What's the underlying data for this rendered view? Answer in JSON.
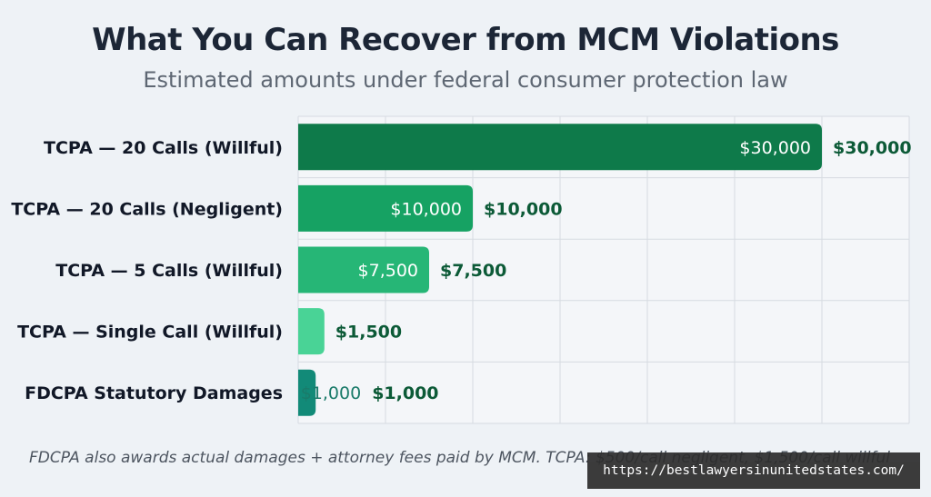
{
  "title": "What You Can Recover from MCM Violations",
  "subtitle": "Estimated amounts under federal consumer protection law",
  "footnote": "FDCPA also awards actual damages + attorney fees paid by MCM. TCPA: $500/call negligent, $1,500/call willful",
  "watermark": "https://bestlawyersinunitedstates.com/",
  "chart_data": {
    "type": "bar",
    "orientation": "horizontal",
    "categories": [
      "TCPA — 20 Calls (Willful)",
      "TCPA — 20 Calls (Negligent)",
      "TCPA — 5 Calls (Willful)",
      "TCPA — Single Call (Willful)",
      "FDCPA Statutory Damages"
    ],
    "values": [
      30000,
      10000,
      7500,
      1500,
      1000
    ],
    "inside_labels": [
      "$30,000",
      "$10,000",
      "$7,500",
      "",
      "$1,000"
    ],
    "outside_labels": [
      "$30,000",
      "$10,000",
      "$7,500",
      "$1,500",
      "$1,000"
    ],
    "colors": [
      "#0e7a4a",
      "#16a263",
      "#26b676",
      "#49d396",
      "#128a78"
    ],
    "xlim": [
      0,
      35000
    ],
    "grid": true,
    "xlabel": "",
    "ylabel": ""
  }
}
